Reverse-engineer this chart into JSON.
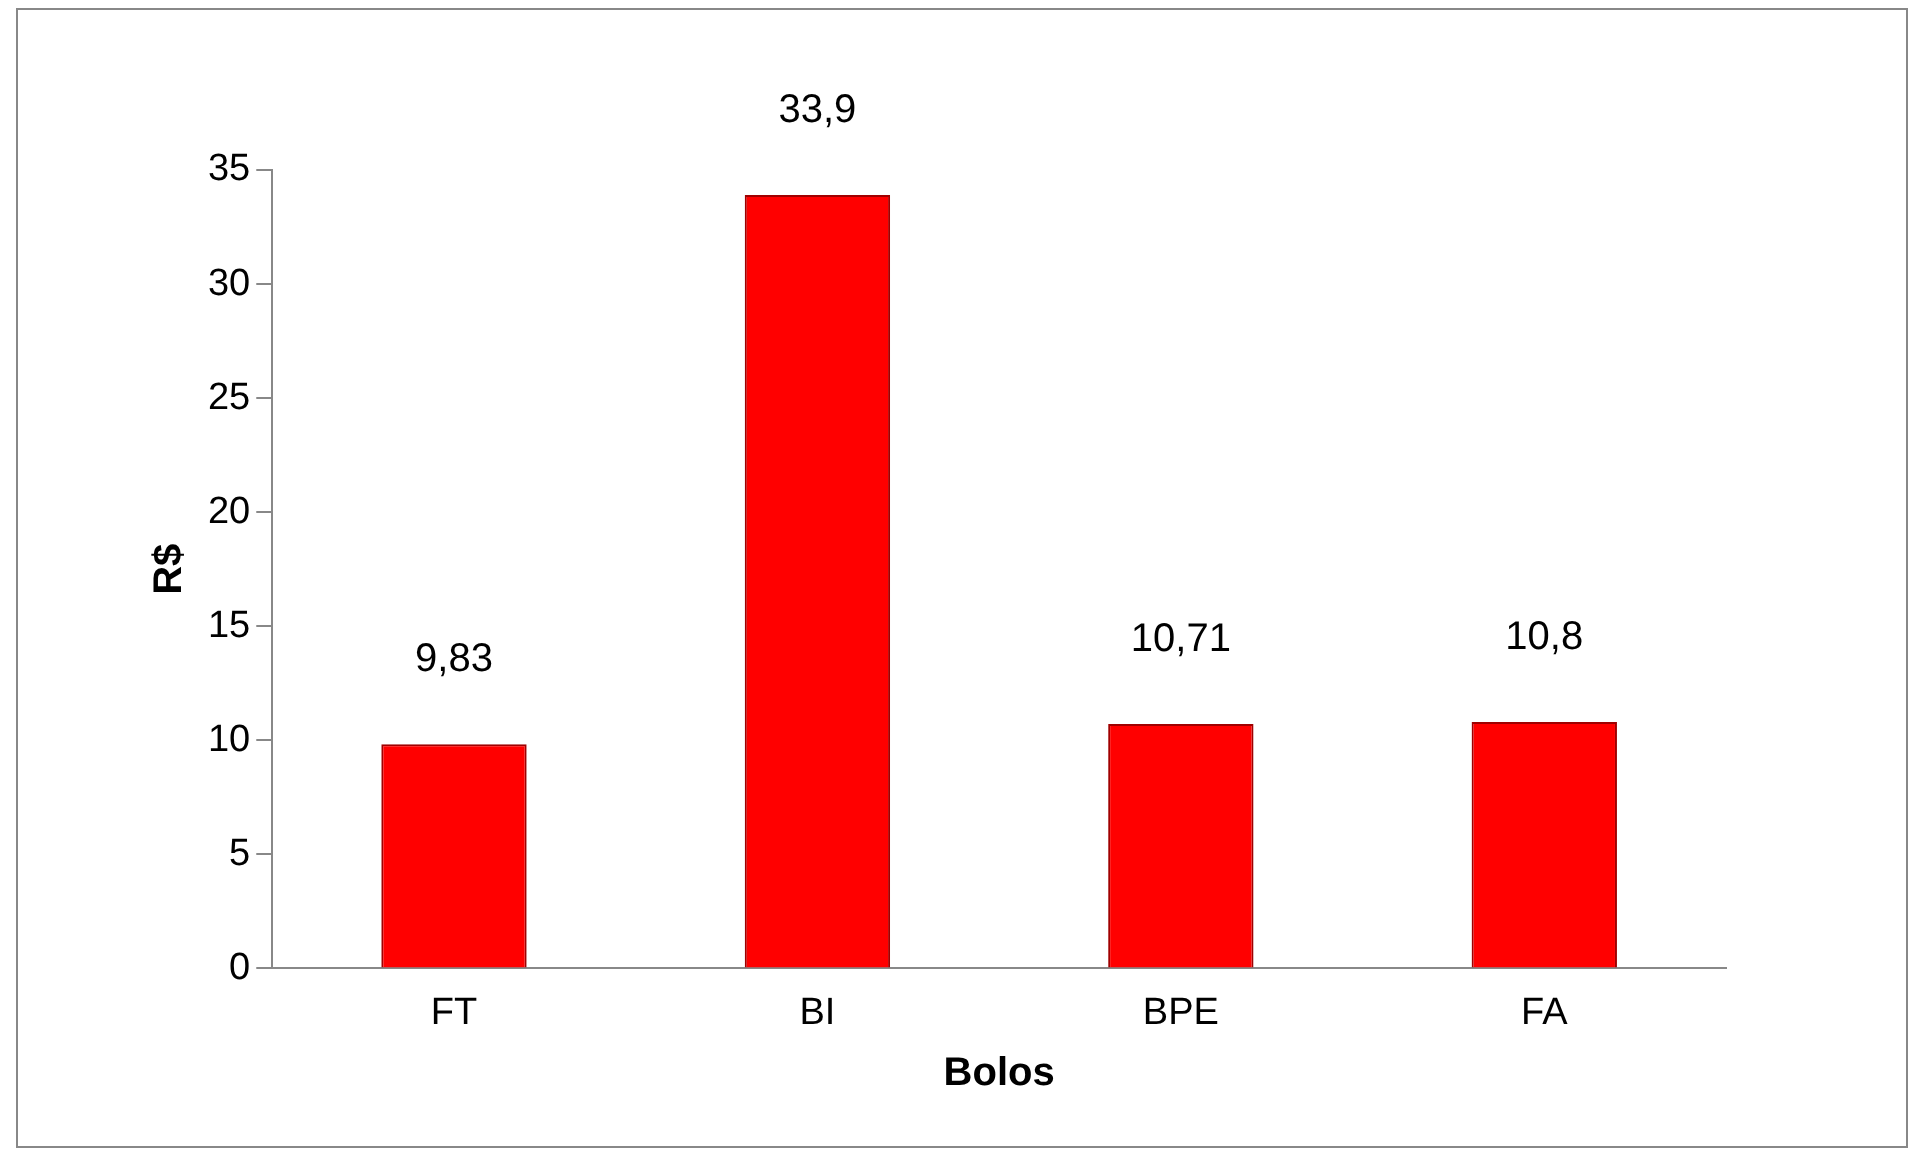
{
  "chart_data": {
    "type": "bar",
    "xlabel": "Bolos",
    "ylabel": "R$",
    "categories": [
      "FT",
      "BI",
      "BPE",
      "FA"
    ],
    "values": [
      9.83,
      33.9,
      10.71,
      10.8
    ],
    "value_labels": [
      "9,83",
      "33,9",
      "10,71",
      "10,8"
    ],
    "color": "#ff0000",
    "ylim": [
      0,
      35
    ],
    "yticks": [
      0,
      5,
      10,
      15,
      20,
      25,
      30,
      35
    ],
    "grid": false,
    "legend": false
  }
}
